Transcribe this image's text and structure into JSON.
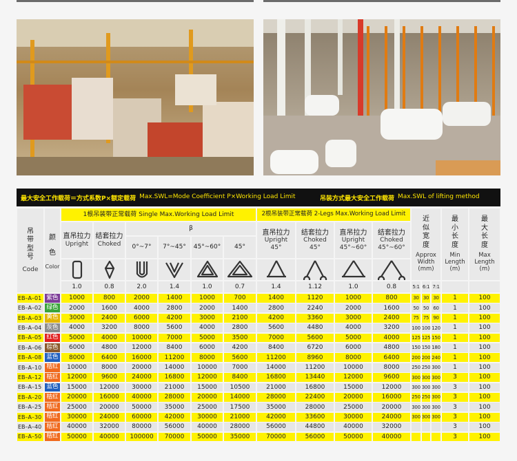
{
  "table": {
    "banner": {
      "left": "最大安全工作载荷＝方式系数P×额定载荷",
      "left_en": "Max.SWL=Mode Coefficient P×Working Load Limit",
      "right": "吊装方式最大安全工作载荷",
      "right_en": "Max.SWL of lifting method"
    },
    "code_label": {
      "zh": "吊带型号",
      "en": "Code"
    },
    "color_label": {
      "zh": "颜色",
      "en": "Color"
    },
    "single_group": "1根吊装带正常载荷 Single Max.Working Load Limit",
    "two_group": "2根吊装带正常载荷 2-Legs Max.Working Load Limit",
    "single_columns": [
      {
        "zh": "直吊拉力",
        "en": "Upright"
      },
      {
        "zh": "结套拉力",
        "en": "Choked"
      }
    ],
    "beta": "β",
    "beta_angles": [
      "0°~7°",
      "7°~45°",
      "45°~60°",
      "45°"
    ],
    "two_columns": [
      {
        "zh": "直吊拉力",
        "en": "Upright",
        "angle": "45°"
      },
      {
        "zh": "结套拉力",
        "en": "Choked",
        "angle": "45°"
      },
      {
        "zh": "直吊拉力",
        "en": "Upright",
        "angle": "45°~60°"
      },
      {
        "zh": "结套拉力",
        "en": "Choked",
        "angle": "45°~60°"
      }
    ],
    "width_label": {
      "zh": "近似宽度",
      "en": "Approx Width",
      "unit": "(mm)"
    },
    "min_label": {
      "zh": "最小长度",
      "en": "Min Length",
      "unit": "(m)"
    },
    "max_label": {
      "zh": "最大长度",
      "en": "Max Length",
      "unit": "(m)"
    },
    "coefficients": [
      "1.0",
      "0.8",
      "2.0",
      "1.4",
      "1.0",
      "0.7",
      "1.4",
      "1.12",
      "1.0",
      "0.8"
    ],
    "safety_factors": [
      "5:1",
      "6:1",
      "7:1"
    ],
    "rows": [
      {
        "code": "EB–A–01",
        "color": "紫色",
        "swatch": "#7d3c98",
        "loads": [
          1000,
          800,
          2000,
          1400,
          1000,
          700,
          1400,
          1120,
          1000,
          800
        ],
        "width": [
          30,
          30,
          30
        ],
        "min": 1,
        "max": 100
      },
      {
        "code": "EB–A–02",
        "color": "绿色",
        "swatch": "#3aa53a",
        "loads": [
          2000,
          1600,
          4000,
          2800,
          2000,
          1400,
          2800,
          2240,
          2000,
          1600
        ],
        "width": [
          50,
          50,
          60
        ],
        "min": 1,
        "max": 100
      },
      {
        "code": "EB–A–03",
        "color": "黄色",
        "swatch": "#e2b400",
        "loads": [
          3000,
          2400,
          6000,
          4200,
          3000,
          2100,
          4200,
          3360,
          3000,
          2400
        ],
        "width": [
          75,
          75,
          90
        ],
        "min": 1,
        "max": 100
      },
      {
        "code": "EB–A–04",
        "color": "灰色",
        "swatch": "#8c8c8c",
        "loads": [
          4000,
          3200,
          8000,
          5600,
          4000,
          2800,
          5600,
          4480,
          4000,
          3200
        ],
        "width": [
          100,
          100,
          120
        ],
        "min": 1,
        "max": 100
      },
      {
        "code": "EB–A–05",
        "color": "红色",
        "swatch": "#e02020",
        "loads": [
          5000,
          4000,
          10000,
          7000,
          5000,
          3500,
          7000,
          5600,
          5000,
          4000
        ],
        "width": [
          125,
          125,
          150
        ],
        "min": 1,
        "max": 100
      },
      {
        "code": "EB–A–06",
        "color": "棕色",
        "swatch": "#8b5a2b",
        "loads": [
          6000,
          4800,
          12000,
          8400,
          6000,
          4200,
          8400,
          6720,
          6000,
          4800
        ],
        "width": [
          150,
          150,
          180
        ],
        "min": 1,
        "max": 100
      },
      {
        "code": "EB–A–08",
        "color": "蓝色",
        "swatch": "#1f5fbf",
        "loads": [
          8000,
          6400,
          16000,
          11200,
          8000,
          5600,
          11200,
          8960,
          8000,
          6400
        ],
        "width": [
          200,
          200,
          240
        ],
        "min": 1,
        "max": 100
      },
      {
        "code": "EB–A–10",
        "color": "桔红",
        "swatch": "#f06a1e",
        "loads": [
          10000,
          8000,
          20000,
          14000,
          10000,
          7000,
          14000,
          11200,
          10000,
          8000
        ],
        "width": [
          250,
          250,
          300
        ],
        "min": 1,
        "max": 100
      },
      {
        "code": "EB–A–12",
        "color": "桔红",
        "swatch": "#f06a1e",
        "loads": [
          12000,
          9600,
          24000,
          16800,
          12000,
          8400,
          16800,
          13440,
          12000,
          9600
        ],
        "width": [
          300,
          300,
          300
        ],
        "min": 3,
        "max": 100
      },
      {
        "code": "EB–A–15",
        "color": "蓝色",
        "swatch": "#1f5fbf",
        "loads": [
          15000,
          12000,
          30000,
          21000,
          15000,
          10500,
          21000,
          16800,
          15000,
          12000
        ],
        "width": [
          300,
          300,
          300
        ],
        "min": 3,
        "max": 100
      },
      {
        "code": "EB–A–20",
        "color": "桔红",
        "swatch": "#f06a1e",
        "loads": [
          20000,
          16000,
          40000,
          28000,
          20000,
          14000,
          28000,
          22400,
          20000,
          16000
        ],
        "width": [
          250,
          250,
          300
        ],
        "min": 3,
        "max": 100
      },
      {
        "code": "EB–A–25",
        "color": "桔红",
        "swatch": "#f06a1e",
        "loads": [
          25000,
          20000,
          50000,
          35000,
          25000,
          17500,
          35000,
          28000,
          25000,
          20000
        ],
        "width": [
          300,
          300,
          300
        ],
        "min": 3,
        "max": 100
      },
      {
        "code": "EB–A–30",
        "color": "桔红",
        "swatch": "#f06a1e",
        "loads": [
          30000,
          24000,
          60000,
          42000,
          30000,
          21000,
          42000,
          33600,
          30000,
          24000
        ],
        "width": [
          300,
          300,
          300
        ],
        "min": 3,
        "max": 100
      },
      {
        "code": "EB–A–40",
        "color": "桔红",
        "swatch": "#f06a1e",
        "loads": [
          40000,
          32000,
          80000,
          56000,
          40000,
          28000,
          56000,
          44800,
          40000,
          32000
        ],
        "width": [],
        "min": 3,
        "max": 100
      },
      {
        "code": "EB–A–50",
        "color": "桔红",
        "swatch": "#f06a1e",
        "loads": [
          50000,
          40000,
          100000,
          70000,
          50000,
          35000,
          70000,
          56000,
          50000,
          40000
        ],
        "width": [],
        "min": 3,
        "max": 100
      }
    ]
  }
}
